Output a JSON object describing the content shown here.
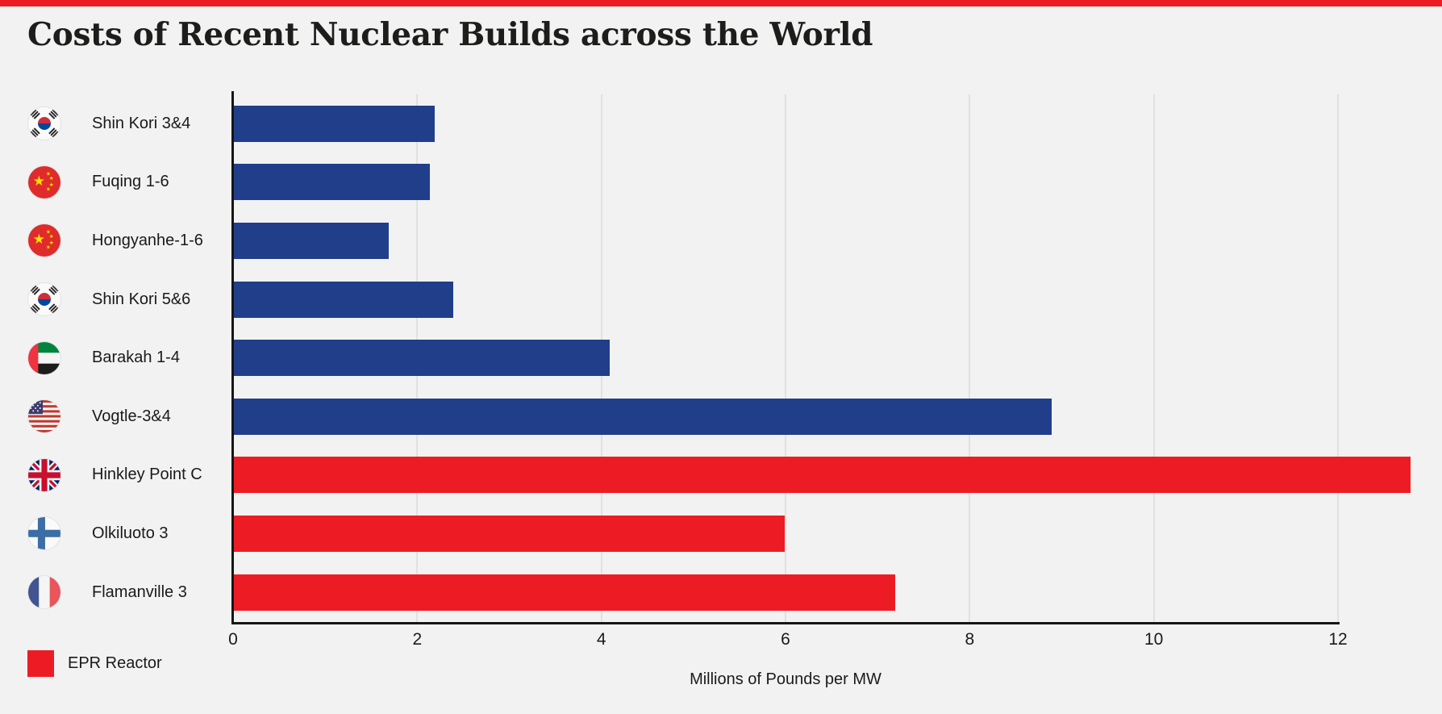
{
  "page": {
    "accent_color": "#ed1c24",
    "background_color": "#f2f2f2"
  },
  "legend": {
    "label": "EPR Reactor",
    "color": "#ed1c24"
  },
  "chart_data": {
    "type": "bar",
    "orientation": "horizontal",
    "title": "Costs of Recent Nuclear Builds across the World",
    "xlabel": "Millions of Pounds per MW",
    "xlim": [
      0,
      12
    ],
    "xticks": [
      0,
      2,
      4,
      6,
      8,
      10,
      12
    ],
    "grid": true,
    "legend_position": "bottom-left",
    "colors": {
      "default_bar": "#203e8a",
      "epr_bar": "#ed1c24"
    },
    "items": [
      {
        "label": "Shin Kori 3&4",
        "value": 2.2,
        "flag": "south-korea",
        "epr": false
      },
      {
        "label": "Fuqing 1-6",
        "value": 2.15,
        "flag": "china",
        "epr": false
      },
      {
        "label": "Hongyanhe-1-6",
        "value": 1.7,
        "flag": "china",
        "epr": false
      },
      {
        "label": "Shin Kori 5&6",
        "value": 2.4,
        "flag": "south-korea",
        "epr": false
      },
      {
        "label": "Barakah 1-4",
        "value": 4.1,
        "flag": "uae",
        "epr": false
      },
      {
        "label": "Vogtle-3&4",
        "value": 8.9,
        "flag": "usa",
        "epr": false
      },
      {
        "label": "Hinkley Point C",
        "value": 12.8,
        "flag": "uk",
        "epr": true
      },
      {
        "label": "Olkiluoto 3",
        "value": 6.0,
        "flag": "finland",
        "epr": true
      },
      {
        "label": "Flamanville 3",
        "value": 7.2,
        "flag": "france",
        "epr": true
      }
    ]
  }
}
